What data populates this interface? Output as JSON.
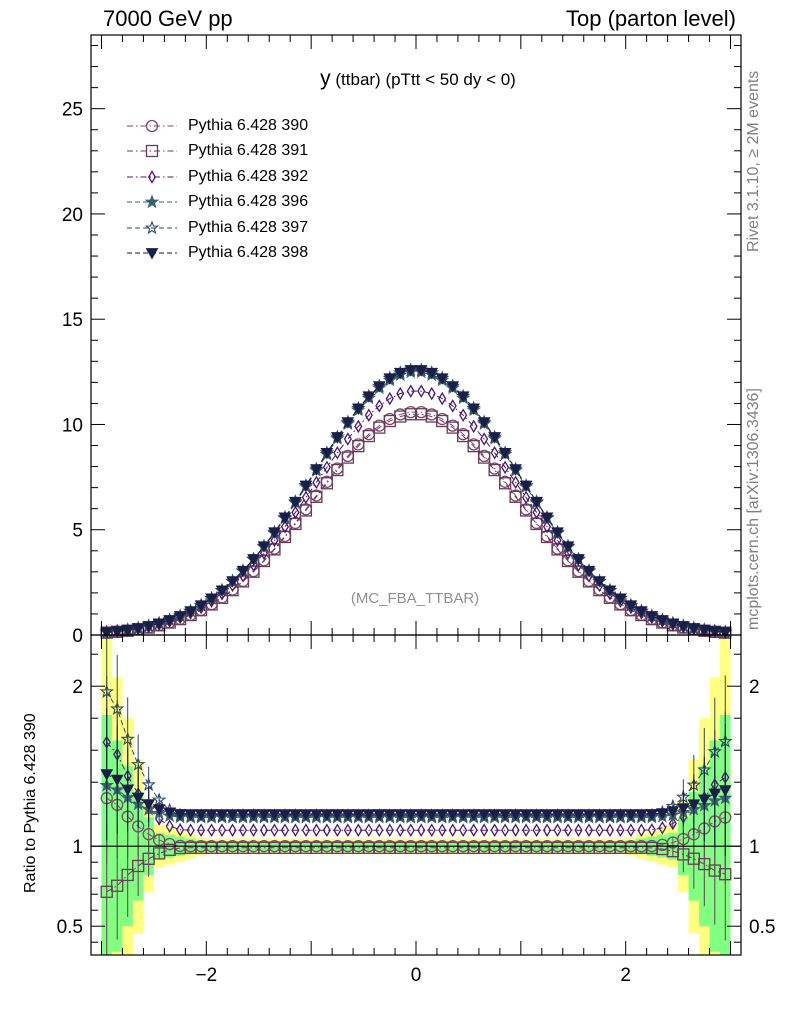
{
  "header": {
    "left": "7000 GeV pp",
    "right": "Top (parton level)"
  },
  "side_text": {
    "rivet": "Rivet 3.1.10, ≥ 2M events",
    "mcplots": "mcplots.cern.ch [arXiv:1306.3436]"
  },
  "plot_title": {
    "main": "y",
    "rest": " (ttbar) (pTtt < 50 dy < 0)"
  },
  "watermark": "(MC_FBA_TTBAR)",
  "ratio_ylabel": "Ratio to Pythia 6.428 390",
  "colors": {
    "s390": "#7b4a6b",
    "s391": "#6b3a58",
    "s392": "#4b1a70",
    "s396": "#3b6070",
    "s397": "#2e4a62",
    "s398": "#1a1e48",
    "band_yellow": "#ffff80",
    "band_green": "#80ff80"
  },
  "chart_data": {
    "type": "line",
    "x_range": [
      -3.1,
      3.1
    ],
    "main_ylim": [
      0,
      28.5
    ],
    "main_yticks": [
      0,
      5,
      10,
      15,
      20,
      25
    ],
    "main_ytick_labels": [
      "0",
      "5",
      "10",
      "15",
      "20",
      "25"
    ],
    "ratio_ylim": [
      0.32,
      2.32
    ],
    "ratio_yticks": [
      0.5,
      1,
      2
    ],
    "ratio_ytick_labels": [
      "0.5",
      "1",
      "2"
    ],
    "xticks": [
      -2,
      0,
      2
    ],
    "xtick_labels": [
      "−2",
      "0",
      "2"
    ],
    "series": [
      {
        "name": "Pythia 6.428 390",
        "key": "s390",
        "marker": "circle-open",
        "line": "dash-dot",
        "peak": 10.6,
        "ratio_level": 1.0
      },
      {
        "name": "Pythia 6.428 391",
        "key": "s391",
        "marker": "square-open",
        "line": "dash-dot",
        "peak": 10.5,
        "ratio_level": 0.99
      },
      {
        "name": "Pythia 6.428 392",
        "key": "s392",
        "marker": "diamond-open",
        "line": "dash-dot",
        "peak": 11.6,
        "ratio_level": 1.1
      },
      {
        "name": "Pythia 6.428 396",
        "key": "s396",
        "marker": "star-filled",
        "line": "dash",
        "peak": 12.5,
        "ratio_level": 1.18
      },
      {
        "name": "Pythia 6.428 397",
        "key": "s397",
        "marker": "star-open",
        "line": "dash",
        "peak": 12.6,
        "ratio_level": 1.19
      },
      {
        "name": "Pythia 6.428 398",
        "key": "s398",
        "marker": "triangle-down-filled",
        "line": "dash",
        "peak": 12.6,
        "ratio_level": 1.2
      }
    ]
  }
}
